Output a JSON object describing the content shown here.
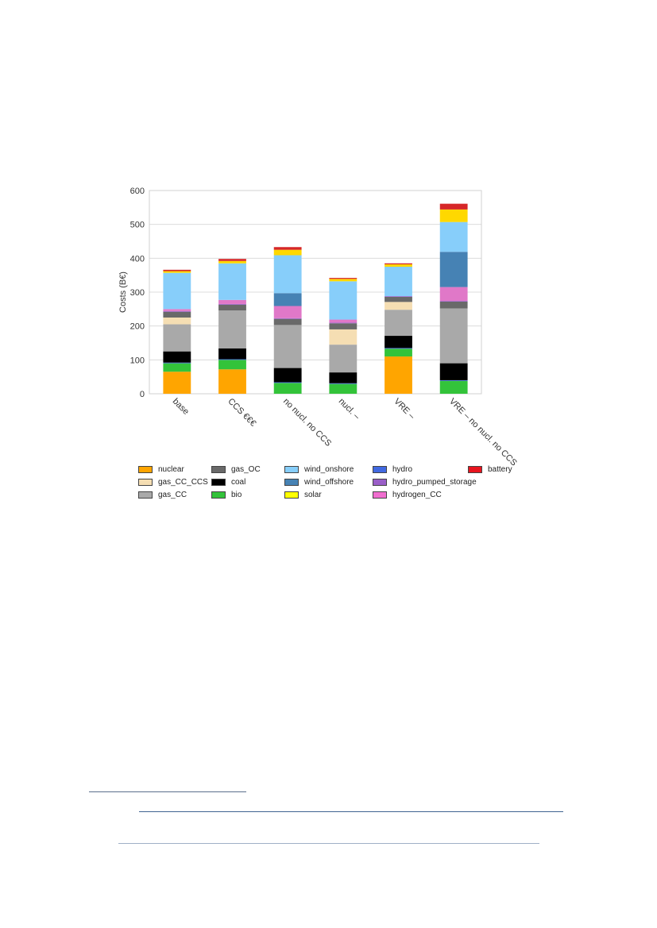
{
  "chart_data": {
    "type": "bar",
    "stacked": true,
    "title": "",
    "xlabel": "",
    "ylabel": "Costs (B€)",
    "ylim": [
      0,
      600
    ],
    "yticks": [
      0,
      100,
      200,
      300,
      400,
      500,
      600
    ],
    "grid": true,
    "legend_position": "bottom",
    "categories": [
      "base",
      "CCS €€€",
      "no nucl. no CCS",
      "nucl. –",
      "VRE –",
      "VRE – no nucl. no CCS"
    ],
    "series": [
      {
        "name": "nuclear",
        "color": "#FFA500",
        "values": [
          65,
          72,
          0,
          0,
          110,
          0
        ]
      },
      {
        "name": "bio",
        "color": "#33C33A",
        "values": [
          25,
          28,
          32,
          29,
          23,
          38
        ]
      },
      {
        "name": "hydro",
        "color": "#4169E1",
        "values": [
          2,
          2,
          2,
          2,
          2,
          2
        ]
      },
      {
        "name": "coal",
        "color": "#000000",
        "values": [
          33,
          32,
          42,
          32,
          36,
          50
        ]
      },
      {
        "name": "gas_CC",
        "color": "#A9A9A9",
        "values": [
          80,
          112,
          127,
          82,
          77,
          162
        ]
      },
      {
        "name": "gas_CC_CCS",
        "color": "#F5DEB3",
        "values": [
          20,
          0,
          0,
          45,
          23,
          0
        ]
      },
      {
        "name": "gas_OC",
        "color": "#696969",
        "values": [
          17,
          17,
          18,
          18,
          15,
          20
        ]
      },
      {
        "name": "hydro_pumped_storage",
        "color": "#9A5FC8",
        "values": [
          2,
          2,
          2,
          2,
          2,
          2
        ]
      },
      {
        "name": "hydrogen_CC",
        "color": "#E078C8",
        "values": [
          6,
          12,
          36,
          9,
          0,
          41
        ]
      },
      {
        "name": "wind_offshore",
        "color": "#4682B4",
        "values": [
          0,
          0,
          38,
          0,
          0,
          104
        ]
      },
      {
        "name": "wind_onshore",
        "color": "#87CEFA",
        "values": [
          107,
          108,
          112,
          113,
          87,
          88
        ]
      },
      {
        "name": "solar",
        "color": "#FFD800",
        "values": [
          5,
          7,
          16,
          7,
          7,
          37
        ]
      },
      {
        "name": "battery",
        "color": "#D62728",
        "values": [
          4,
          6,
          8,
          3,
          3,
          17
        ]
      }
    ]
  },
  "legend": [
    {
      "label": "nuclear",
      "color": "#FFA500"
    },
    {
      "label": "gas_OC",
      "color": "#696969"
    },
    {
      "label": "wind_onshore",
      "color": "#87CEFA"
    },
    {
      "label": "hydro",
      "color": "#4169E1"
    },
    {
      "label": "battery",
      "color": "#E8141E"
    },
    {
      "label": "gas_CC_CCS",
      "color": "#F5DEB3"
    },
    {
      "label": "coal",
      "color": "#000000"
    },
    {
      "label": "wind_offshore",
      "color": "#4682B4"
    },
    {
      "label": "hydro_pumped_storage",
      "color": "#9A5FC8"
    },
    {
      "label": "",
      "color": ""
    },
    {
      "label": "gas_CC",
      "color": "#A9A9A9"
    },
    {
      "label": "bio",
      "color": "#33C33A"
    },
    {
      "label": "solar",
      "color": "#FFFF00"
    },
    {
      "label": "hydrogen_CC",
      "color": "#F06ECF"
    },
    {
      "label": "",
      "color": ""
    }
  ]
}
